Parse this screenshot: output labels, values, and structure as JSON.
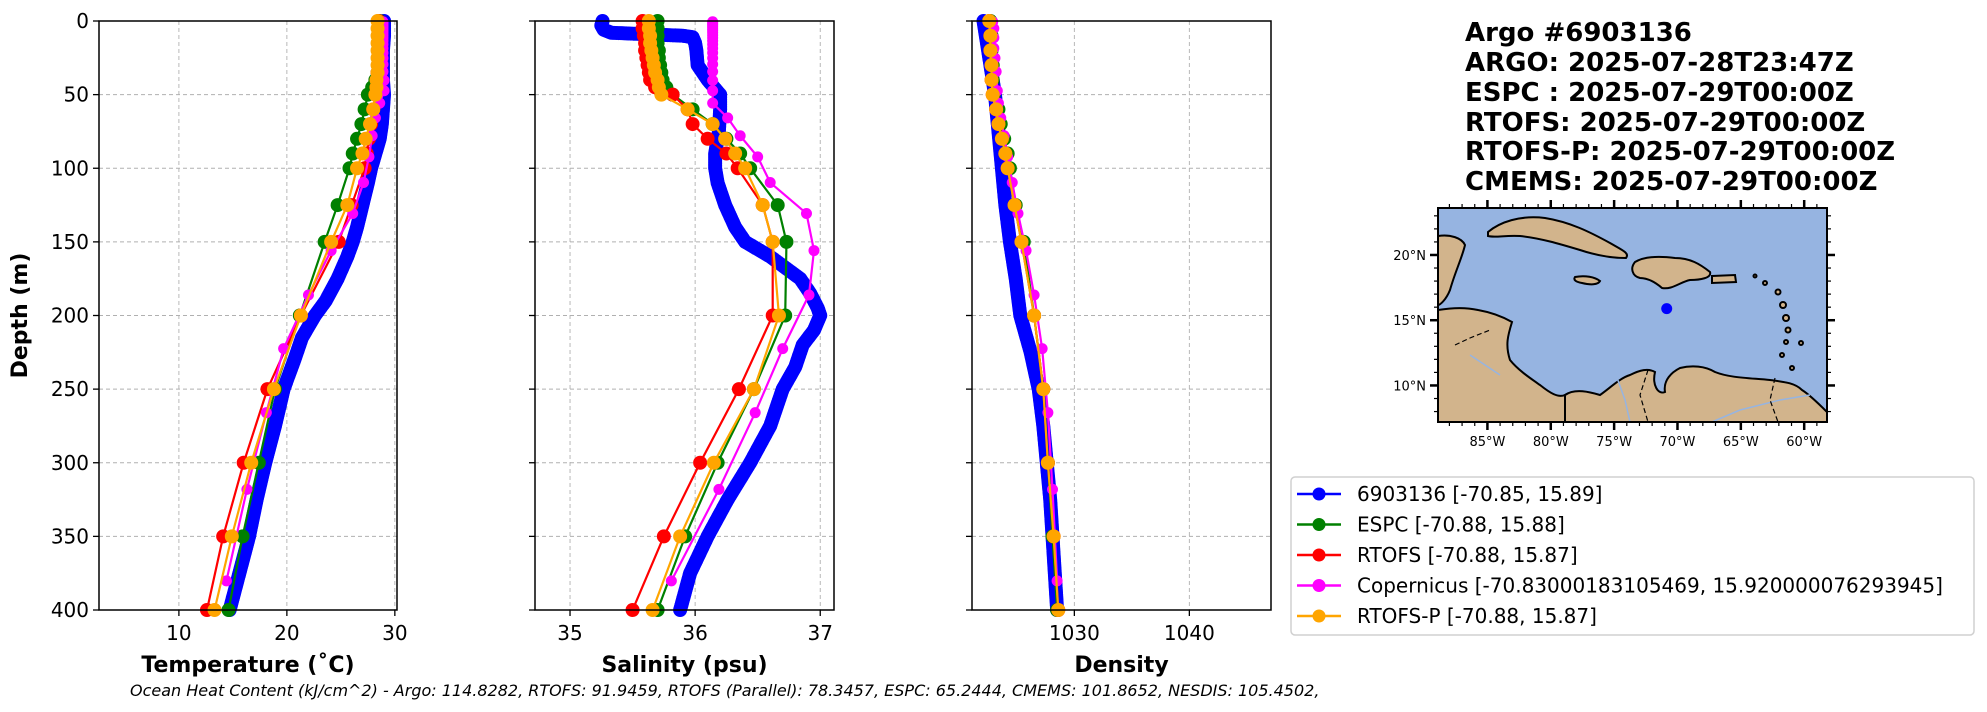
{
  "info": {
    "lines": [
      "Argo #6903136",
      "ARGO: 2025-07-28T23:47Z",
      "ESPC : 2025-07-29T00:00Z",
      "RTOFS: 2025-07-29T00:00Z",
      "RTOFS-P: 2025-07-29T00:00Z",
      "CMEMS: 2025-07-29T00:00Z"
    ]
  },
  "ohc_text": "Ocean Heat Content (kJ/cm^2) - Argo: 114.8282,  RTOFS: 91.9459,  RTOFS (Parallel): 78.3457,  ESPC: 65.2444,  CMEMS: 101.8652,  NESDIS: 105.4502,",
  "legend": [
    {
      "label": "6903136 [-70.85, 15.89]",
      "color": "#0000ff"
    },
    {
      "label": "ESPC [-70.88, 15.88]",
      "color": "#008000"
    },
    {
      "label": "RTOFS [-70.88, 15.87]",
      "color": "#ff0000"
    },
    {
      "label": "Copernicus [-70.83000183105469, 15.920000076293945]",
      "color": "#ff00ff"
    },
    {
      "label": "RTOFS-P [-70.88, 15.87]",
      "color": "#ffa500"
    }
  ],
  "map": {
    "lon_range": [
      -88.9,
      -58.2
    ],
    "lat_range": [
      7.2,
      23.6
    ],
    "lon_ticks": [
      -85,
      -80,
      -75,
      -70,
      -65,
      -60
    ],
    "lon_tick_labels": [
      "85°W",
      "80°W",
      "75°W",
      "70°W",
      "65°W",
      "60°W"
    ],
    "lat_ticks": [
      10,
      15,
      20
    ],
    "lat_tick_labels": [
      "10°N",
      "15°N",
      "20°N"
    ],
    "ocean_color": "#96b4e1",
    "land_color": "#d2b48c",
    "float_position": {
      "lon": -70.85,
      "lat": 15.89,
      "color": "#0000ff"
    }
  },
  "chart_data": [
    {
      "type": "line",
      "title": "",
      "xlabel": "Temperature (˚C)",
      "ylabel": "Depth (m)",
      "xlim": [
        2.6,
        30.2
      ],
      "ylim": [
        400,
        0
      ],
      "xticks": [
        10,
        20,
        30
      ],
      "xtick_labels": [
        "10",
        "20",
        "30"
      ],
      "yticks": [
        0,
        50,
        100,
        150,
        200,
        250,
        300,
        350,
        400
      ],
      "ytick_labels": [
        "0",
        "50",
        "100",
        "150",
        "200",
        "250",
        "300",
        "350",
        "400"
      ],
      "grid": true,
      "series": [
        {
          "name": "6903136",
          "color": "#0000ff",
          "dense": true,
          "depth": [
            0,
            10,
            20,
            30,
            40,
            50,
            60,
            70,
            80,
            90,
            100,
            110,
            125,
            140,
            150,
            160,
            175,
            190,
            200,
            215,
            230,
            250,
            275,
            300,
            325,
            350,
            375,
            400
          ],
          "values": [
            29.0,
            29.0,
            28.9,
            28.9,
            28.9,
            29.0,
            28.9,
            28.8,
            28.6,
            28.2,
            27.8,
            27.5,
            27.0,
            26.5,
            26.1,
            25.6,
            24.7,
            23.6,
            22.6,
            21.4,
            20.7,
            19.7,
            18.9,
            18.0,
            17.2,
            16.5,
            15.6,
            14.7
          ]
        },
        {
          "name": "ESPC",
          "color": "#008000",
          "depth": [
            0,
            5,
            10,
            15,
            20,
            25,
            30,
            35,
            40,
            45,
            50,
            60,
            70,
            80,
            90,
            100,
            125,
            150,
            200,
            250,
            300,
            350,
            400
          ],
          "values": [
            28.6,
            28.6,
            28.6,
            28.6,
            28.6,
            28.6,
            28.5,
            28.4,
            28.2,
            27.9,
            27.5,
            27.2,
            26.9,
            26.5,
            26.1,
            25.8,
            24.7,
            23.5,
            21.2,
            18.9,
            17.4,
            15.9,
            14.6
          ]
        },
        {
          "name": "RTOFS",
          "color": "#ff0000",
          "depth": [
            0,
            5,
            10,
            15,
            20,
            25,
            30,
            35,
            40,
            45,
            50,
            60,
            70,
            80,
            90,
            100,
            125,
            150,
            200,
            250,
            300,
            350,
            400
          ],
          "values": [
            28.5,
            28.5,
            28.5,
            28.5,
            28.5,
            28.5,
            28.5,
            28.4,
            28.4,
            28.3,
            28.2,
            28.0,
            27.8,
            27.6,
            27.4,
            27.2,
            26.0,
            24.8,
            21.3,
            18.2,
            16.0,
            14.1,
            12.6
          ]
        },
        {
          "name": "Copernicus",
          "color": "#ff00ff",
          "depth": [
            0.5,
            1.5,
            2.6,
            3.8,
            5.1,
            6.4,
            7.9,
            9.6,
            11.4,
            13.5,
            15.8,
            18.5,
            21.6,
            25.2,
            29.4,
            34.4,
            40.3,
            47.4,
            55.8,
            65.8,
            77.9,
            92.3,
            109.7,
            130.7,
            155.9,
            186.1,
            222.5,
            266.0,
            318.1,
            380.2
          ],
          "values": [
            28.9,
            28.9,
            28.9,
            28.9,
            28.9,
            28.9,
            28.9,
            28.9,
            28.9,
            28.9,
            28.9,
            28.9,
            28.9,
            28.9,
            28.9,
            28.9,
            29.0,
            29.0,
            28.6,
            28.2,
            27.9,
            27.6,
            27.1,
            26.1,
            24.1,
            22.0,
            19.7,
            18.1,
            16.3,
            14.4
          ]
        },
        {
          "name": "RTOFS-P",
          "color": "#ffa500",
          "depth": [
            0,
            5,
            10,
            15,
            20,
            25,
            30,
            35,
            40,
            45,
            50,
            60,
            70,
            80,
            90,
            100,
            125,
            150,
            200,
            250,
            300,
            350,
            400
          ],
          "values": [
            28.4,
            28.4,
            28.4,
            28.4,
            28.4,
            28.4,
            28.4,
            28.4,
            28.3,
            28.3,
            28.2,
            28.0,
            27.7,
            27.3,
            27.0,
            26.5,
            25.6,
            24.1,
            21.3,
            18.8,
            16.7,
            14.9,
            13.3
          ]
        }
      ]
    },
    {
      "type": "line",
      "title": "",
      "xlabel": "Salinity (psu)",
      "ylabel": "",
      "xlim": [
        34.72,
        37.11
      ],
      "ylim": [
        400,
        0
      ],
      "xticks": [
        35,
        36,
        37
      ],
      "xtick_labels": [
        "35",
        "36",
        "37"
      ],
      "yticks": [
        0,
        50,
        100,
        150,
        200,
        250,
        300,
        350,
        400
      ],
      "grid": true,
      "series": [
        {
          "name": "6903136",
          "color": "#0000ff",
          "dense": true,
          "depth": [
            0,
            3,
            6,
            8,
            10,
            11,
            15,
            20,
            30,
            40,
            50,
            60,
            75,
            90,
            100,
            110,
            125,
            140,
            150,
            160,
            175,
            185,
            195,
            200,
            210,
            220,
            235,
            250,
            275,
            300,
            325,
            350,
            375,
            400
          ],
          "values": [
            35.26,
            35.25,
            35.27,
            35.33,
            35.9,
            35.98,
            36.0,
            36.01,
            36.02,
            36.1,
            36.2,
            36.2,
            36.19,
            36.16,
            36.16,
            36.18,
            36.24,
            36.32,
            36.4,
            36.6,
            36.84,
            36.92,
            36.98,
            37.0,
            36.95,
            36.86,
            36.8,
            36.7,
            36.6,
            36.44,
            36.26,
            36.1,
            35.96,
            35.88
          ]
        },
        {
          "name": "ESPC",
          "color": "#008000",
          "depth": [
            0,
            5,
            10,
            15,
            20,
            25,
            30,
            35,
            40,
            45,
            50,
            60,
            70,
            80,
            90,
            100,
            125,
            150,
            200,
            250,
            300,
            350,
            400
          ],
          "values": [
            35.7,
            35.7,
            35.7,
            35.7,
            35.71,
            35.71,
            35.72,
            35.73,
            35.74,
            35.77,
            35.82,
            35.98,
            36.14,
            36.25,
            36.36,
            36.44,
            36.66,
            36.73,
            36.72,
            36.47,
            36.18,
            35.92,
            35.7
          ]
        },
        {
          "name": "RTOFS",
          "color": "#ff0000",
          "depth": [
            0,
            5,
            10,
            15,
            20,
            25,
            30,
            35,
            40,
            45,
            50,
            60,
            70,
            80,
            90,
            100,
            125,
            150,
            200,
            250,
            300,
            350,
            400
          ],
          "values": [
            35.58,
            35.58,
            35.59,
            35.6,
            35.6,
            35.61,
            35.62,
            35.63,
            35.64,
            35.68,
            35.82,
            35.94,
            35.98,
            36.1,
            36.25,
            36.34,
            36.54,
            36.62,
            36.62,
            36.35,
            36.04,
            35.75,
            35.5
          ]
        },
        {
          "name": "Copernicus",
          "color": "#ff00ff",
          "depth": [
            0.5,
            1.5,
            2.6,
            3.8,
            5.1,
            6.4,
            7.9,
            9.6,
            11.4,
            13.5,
            15.8,
            18.5,
            21.6,
            25.2,
            29.4,
            34.4,
            40.3,
            47.4,
            55.8,
            65.8,
            77.9,
            92.3,
            109.7,
            130.7,
            155.9,
            186.1,
            222.5,
            266.0,
            318.1,
            380.2
          ],
          "values": [
            36.14,
            36.14,
            36.14,
            36.14,
            36.14,
            36.14,
            36.14,
            36.14,
            36.14,
            36.14,
            36.14,
            36.14,
            36.14,
            36.14,
            36.14,
            36.14,
            36.14,
            36.14,
            36.14,
            36.26,
            36.36,
            36.5,
            36.6,
            36.89,
            36.95,
            36.91,
            36.7,
            36.48,
            36.19,
            35.81
          ]
        },
        {
          "name": "RTOFS-P",
          "color": "#ffa500",
          "depth": [
            0,
            5,
            10,
            15,
            20,
            25,
            30,
            35,
            40,
            45,
            50,
            60,
            70,
            80,
            90,
            100,
            125,
            150,
            200,
            250,
            300,
            350,
            400
          ],
          "values": [
            35.63,
            35.63,
            35.64,
            35.64,
            35.65,
            35.66,
            35.67,
            35.68,
            35.7,
            35.71,
            35.73,
            35.94,
            36.14,
            36.24,
            36.32,
            36.4,
            36.54,
            36.62,
            36.67,
            36.47,
            36.15,
            35.88,
            35.66
          ]
        }
      ]
    },
    {
      "type": "line",
      "title": "",
      "xlabel": "Density",
      "ylabel": "",
      "xlim": [
        1021.1,
        1047.1
      ],
      "ylim": [
        400,
        0
      ],
      "xticks": [
        1030,
        1040
      ],
      "xtick_labels": [
        "1030",
        "1040"
      ],
      "yticks": [
        0,
        50,
        100,
        150,
        200,
        250,
        300,
        350,
        400
      ],
      "grid": true,
      "series": [
        {
          "name": "6903136",
          "color": "#0000ff",
          "dense": true,
          "depth": [
            0,
            10,
            25,
            50,
            75,
            100,
            125,
            150,
            175,
            200,
            225,
            250,
            275,
            300,
            325,
            350,
            375,
            400
          ],
          "values": [
            1022.1,
            1022.3,
            1022.6,
            1023.1,
            1023.4,
            1023.7,
            1024.0,
            1024.4,
            1024.9,
            1025.3,
            1026.2,
            1026.9,
            1027.3,
            1027.6,
            1027.9,
            1028.1,
            1028.3,
            1028.5
          ]
        },
        {
          "name": "ESPC",
          "color": "#008000",
          "depth": [
            0,
            10,
            20,
            30,
            40,
            50,
            60,
            70,
            80,
            90,
            100,
            125,
            150,
            200,
            250,
            300,
            350,
            400
          ],
          "values": [
            1022.7,
            1022.8,
            1022.8,
            1022.9,
            1022.9,
            1023.0,
            1023.4,
            1023.6,
            1023.9,
            1024.2,
            1024.4,
            1024.9,
            1025.6,
            1026.5,
            1027.3,
            1027.7,
            1028.1,
            1028.5
          ]
        },
        {
          "name": "RTOFS",
          "color": "#ff0000",
          "depth": [
            0,
            10,
            20,
            30,
            40,
            50,
            60,
            70,
            80,
            90,
            100,
            125,
            150,
            200,
            250,
            300,
            350,
            400
          ],
          "values": [
            1022.6,
            1022.7,
            1022.7,
            1022.8,
            1022.8,
            1022.9,
            1023.2,
            1023.4,
            1023.7,
            1024.0,
            1024.2,
            1024.8,
            1025.4,
            1026.5,
            1027.3,
            1027.7,
            1028.2,
            1028.6
          ]
        },
        {
          "name": "Copernicus",
          "color": "#ff00ff",
          "depth": [
            0.5,
            5.1,
            11.4,
            18.5,
            25.2,
            34.4,
            47.4,
            55.8,
            65.8,
            77.9,
            92.3,
            109.7,
            130.7,
            155.9,
            186.1,
            222.5,
            266.0,
            318.1,
            380.2
          ],
          "values": [
            1022.9,
            1023.0,
            1023.0,
            1023.0,
            1023.1,
            1023.2,
            1023.3,
            1023.4,
            1023.6,
            1023.9,
            1024.2,
            1024.6,
            1025.1,
            1025.8,
            1026.5,
            1027.2,
            1027.7,
            1028.1,
            1028.5
          ]
        },
        {
          "name": "RTOFS-P",
          "color": "#ffa500",
          "depth": [
            0,
            10,
            20,
            30,
            40,
            50,
            60,
            70,
            80,
            90,
            100,
            125,
            150,
            200,
            250,
            300,
            350,
            400
          ],
          "values": [
            1022.6,
            1022.7,
            1022.7,
            1022.8,
            1022.8,
            1022.9,
            1023.2,
            1023.4,
            1023.7,
            1024.0,
            1024.2,
            1024.8,
            1025.4,
            1026.5,
            1027.3,
            1027.7,
            1028.2,
            1028.6
          ]
        }
      ]
    }
  ]
}
